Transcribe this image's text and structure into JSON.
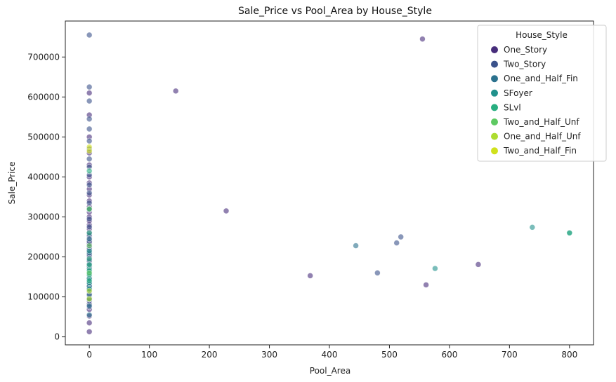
{
  "chart_data": {
    "type": "scatter",
    "title": "Sale_Price vs Pool_Area by House_Style",
    "xlabel": "Pool_Area",
    "ylabel": "Sale_Price",
    "xlim": [
      -40,
      840
    ],
    "ylim": [
      -20000,
      790000
    ],
    "xticks": [
      0,
      100,
      200,
      300,
      400,
      500,
      600,
      700,
      800
    ],
    "yticks": [
      0,
      100000,
      200000,
      300000,
      400000,
      500000,
      600000,
      700000
    ],
    "grid": false,
    "legend": {
      "title": "House_Style",
      "placement": "top-right"
    },
    "marker_alpha": 0.6,
    "series": [
      {
        "name": "One_Story",
        "color": "#472d7b",
        "points": [
          [
            0,
            12789
          ],
          [
            0,
            35000
          ],
          [
            0,
            52000
          ],
          [
            0,
            68500
          ],
          [
            0,
            82000
          ],
          [
            0,
            97000
          ],
          [
            0,
            108000
          ],
          [
            0,
            119000
          ],
          [
            0,
            129500
          ],
          [
            0,
            137000
          ],
          [
            0,
            143000
          ],
          [
            0,
            150000
          ],
          [
            0,
            156000
          ],
          [
            0,
            163000
          ],
          [
            0,
            170000
          ],
          [
            0,
            177000
          ],
          [
            0,
            185000
          ],
          [
            0,
            192000
          ],
          [
            0,
            200000
          ],
          [
            0,
            208000
          ],
          [
            0,
            216000
          ],
          [
            0,
            225000
          ],
          [
            0,
            233000
          ],
          [
            0,
            242000
          ],
          [
            0,
            251000
          ],
          [
            0,
            260000
          ],
          [
            0,
            270000
          ],
          [
            0,
            280000
          ],
          [
            0,
            290000
          ],
          [
            0,
            300000
          ],
          [
            0,
            312000
          ],
          [
            0,
            325000
          ],
          [
            0,
            340000
          ],
          [
            0,
            355000
          ],
          [
            0,
            370000
          ],
          [
            0,
            385000
          ],
          [
            0,
            400000
          ],
          [
            0,
            430000
          ],
          [
            0,
            460000
          ],
          [
            0,
            500000
          ],
          [
            0,
            555000
          ],
          [
            0,
            610000
          ],
          [
            144,
            615000
          ],
          [
            228,
            315000
          ],
          [
            368,
            153000
          ],
          [
            555,
            745000
          ],
          [
            561,
            130000
          ],
          [
            648,
            181000
          ]
        ]
      },
      {
        "name": "Two_Story",
        "color": "#3b528b",
        "points": [
          [
            0,
            755000
          ],
          [
            0,
            625000
          ],
          [
            0,
            590000
          ],
          [
            0,
            545000
          ],
          [
            0,
            520000
          ],
          [
            0,
            490000
          ],
          [
            0,
            470000
          ],
          [
            0,
            445000
          ],
          [
            0,
            425000
          ],
          [
            0,
            405000
          ],
          [
            0,
            380000
          ],
          [
            0,
            360000
          ],
          [
            0,
            335000
          ],
          [
            0,
            318000
          ],
          [
            0,
            295000
          ],
          [
            0,
            275000
          ],
          [
            0,
            255000
          ],
          [
            0,
            238000
          ],
          [
            0,
            220000
          ],
          [
            0,
            205000
          ],
          [
            0,
            190000
          ],
          [
            0,
            175000
          ],
          [
            0,
            160000
          ],
          [
            0,
            145000
          ],
          [
            0,
            128000
          ],
          [
            0,
            115000
          ],
          [
            0,
            90000
          ],
          [
            0,
            75000
          ],
          [
            480,
            160000
          ],
          [
            512,
            235000
          ],
          [
            519,
            250000
          ]
        ]
      },
      {
        "name": "One_and_Half_Fin",
        "color": "#2c728e",
        "points": [
          [
            0,
            55000
          ],
          [
            0,
            78000
          ],
          [
            0,
            94000
          ],
          [
            0,
            105000
          ],
          [
            0,
            118000
          ],
          [
            0,
            126000
          ],
          [
            0,
            135000
          ],
          [
            0,
            147000
          ],
          [
            0,
            166000
          ],
          [
            0,
            182000
          ],
          [
            0,
            210000
          ],
          [
            0,
            245000
          ],
          [
            0,
            320000
          ],
          [
            444,
            228000
          ]
        ]
      },
      {
        "name": "SFoyer",
        "color": "#21918c",
        "points": [
          [
            0,
            120000
          ],
          [
            0,
            135000
          ],
          [
            0,
            145000
          ],
          [
            0,
            158000
          ],
          [
            0,
            170000
          ],
          [
            0,
            215000
          ],
          [
            576,
            171000
          ],
          [
            738,
            274000
          ],
          [
            800,
            260000
          ]
        ]
      },
      {
        "name": "SLvl",
        "color": "#28ae80",
        "points": [
          [
            0,
            140000
          ],
          [
            0,
            155000
          ],
          [
            0,
            165000
          ],
          [
            0,
            180000
          ],
          [
            0,
            195000
          ],
          [
            0,
            260000
          ],
          [
            0,
            415000
          ],
          [
            800,
            260000
          ]
        ]
      },
      {
        "name": "Two_and_Half_Unf",
        "color": "#5ec962",
        "points": [
          [
            0,
            160000
          ],
          [
            0,
            228000
          ],
          [
            0,
            320000
          ]
        ]
      },
      {
        "name": "One_and_Half_Unf",
        "color": "#addc30",
        "points": [
          [
            0,
            95000
          ],
          [
            0,
            115000
          ]
        ]
      },
      {
        "name": "Two_and_Half_Fin",
        "color": "#d0e11c",
        "points": [
          [
            0,
            475000
          ],
          [
            0,
            465000
          ]
        ]
      }
    ]
  }
}
